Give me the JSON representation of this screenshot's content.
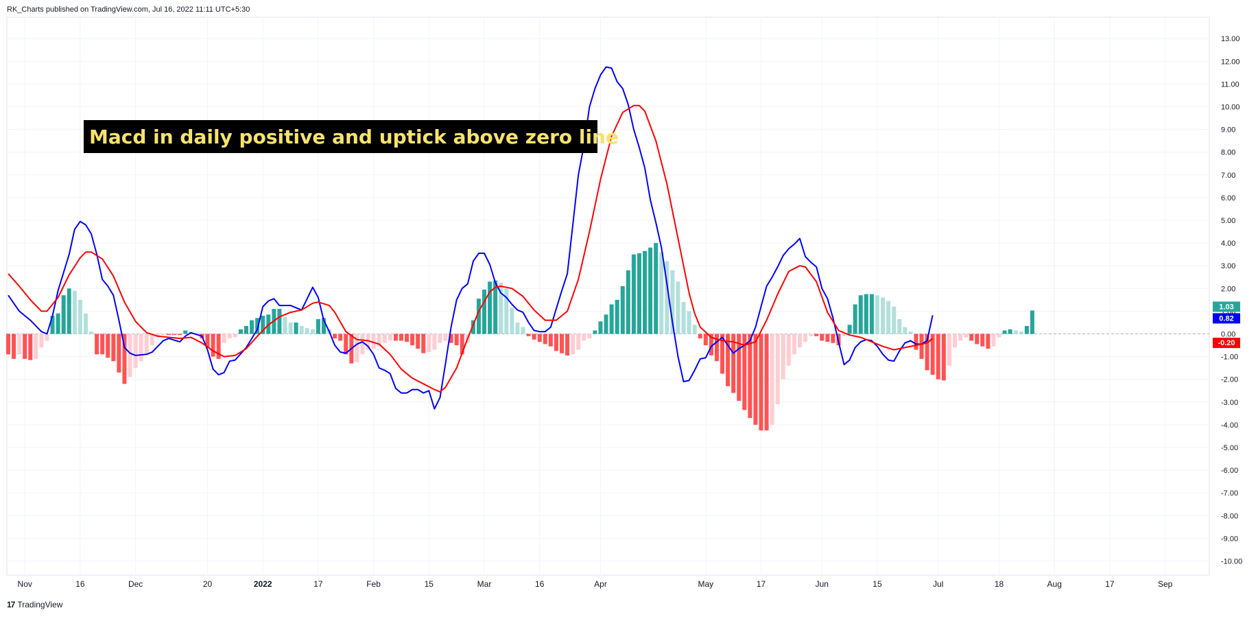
{
  "header": {
    "text": "RK_Charts published on TradingView.com, Jul 16, 2022 11:11 UTC+5:30"
  },
  "footer": {
    "logo": "17",
    "brand": "TradingView"
  },
  "annotation": {
    "text": "Macd in daily positive and uptick above zero line"
  },
  "colors": {
    "macd_line": "#0000ff",
    "signal_line": "#ff0000",
    "hist_pos_rising": "#26a69a",
    "hist_pos_falling": "#b2dfdb",
    "hist_neg_falling": "#ff5252",
    "hist_neg_rising": "#ffcdd2",
    "grid": "#f0f3fa",
    "zero_line": "#b2b5be"
  },
  "chart_data": {
    "type": "line",
    "title": "",
    "xlabel": "",
    "ylabel": "",
    "ylim": [
      -10.5,
      13.5
    ],
    "grid": true,
    "y_ticks": [
      "13.00",
      "12.00",
      "11.00",
      "10.00",
      "9.00",
      "8.00",
      "7.00",
      "6.00",
      "5.00",
      "4.00",
      "3.00",
      "2.00",
      "1.00",
      "0.00",
      "-1.00",
      "-2.00",
      "-3.00",
      "-4.00",
      "-5.00",
      "-6.00",
      "-7.00",
      "-8.00",
      "-9.00",
      "-10.00"
    ],
    "x_ticks": [
      {
        "label": "Nov",
        "bar": 3
      },
      {
        "label": "16",
        "bar": 13
      },
      {
        "label": "Dec",
        "bar": 23
      },
      {
        "label": "20",
        "bar": 36
      },
      {
        "label": "2022",
        "bar": 46
      },
      {
        "label": "17",
        "bar": 56
      },
      {
        "label": "Feb",
        "bar": 66
      },
      {
        "label": "15",
        "bar": 76
      },
      {
        "label": "Mar",
        "bar": 86
      },
      {
        "label": "16",
        "bar": 96
      },
      {
        "label": "Apr",
        "bar": 107
      },
      {
        "label": "May",
        "bar": 126
      },
      {
        "label": "17",
        "bar": 136
      },
      {
        "label": "Jun",
        "bar": 147
      },
      {
        "label": "15",
        "bar": 157
      },
      {
        "label": "Jul",
        "bar": 168
      },
      {
        "label": "18",
        "bar": 179
      },
      {
        "label": "Aug",
        "bar": 189
      },
      {
        "label": "17",
        "bar": 199
      },
      {
        "label": "Sep",
        "bar": 209
      }
    ],
    "histogram": [
      -0.9,
      -1.1,
      -0.9,
      -1.1,
      -1.15,
      -1.1,
      -0.6,
      -0.3,
      0.8,
      0.9,
      1.7,
      2.0,
      1.9,
      1.5,
      0.9,
      0.1,
      -0.9,
      -0.9,
      -1.05,
      -1.2,
      -1.7,
      -2.2,
      -1.9,
      -1.5,
      -1.2,
      -0.9,
      -0.5,
      -0.15,
      -0.05,
      -0.05,
      -0.05,
      -0.05,
      0.15,
      0.1,
      0.05,
      -0.2,
      -0.6,
      -1.0,
      -1.1,
      -0.4,
      -0.2,
      -0.15,
      0.2,
      0.35,
      0.6,
      0.7,
      0.8,
      0.85,
      1.1,
      1.1,
      0.75,
      0.5,
      0.5,
      0.35,
      0.25,
      0.2,
      0.65,
      0.7,
      0.2,
      -0.2,
      -0.3,
      -0.9,
      -1.3,
      -1.25,
      -0.9,
      -0.7,
      -0.65,
      -0.55,
      -0.4,
      -0.3,
      -0.3,
      -0.3,
      -0.35,
      -0.5,
      -0.65,
      -0.85,
      -0.8,
      -0.7,
      -0.4,
      -0.3,
      -0.4,
      -0.5,
      -0.9,
      -0.4,
      0.6,
      1.55,
      1.95,
      2.3,
      2.35,
      2.25,
      2.0,
      1.15,
      0.5,
      0.3,
      -0.1,
      -0.25,
      -0.35,
      -0.45,
      -0.55,
      -0.75,
      -0.85,
      -0.95,
      -0.9,
      -0.7,
      -0.3,
      -0.2,
      0.15,
      0.55,
      0.85,
      1.3,
      1.5,
      2.1,
      2.8,
      3.5,
      3.55,
      3.65,
      3.8,
      4.0,
      3.6,
      3.2,
      2.8,
      2.3,
      1.4,
      1.0,
      0.4,
      -0.2,
      -0.5,
      -0.95,
      -1.2,
      -1.75,
      -2.3,
      -2.6,
      -2.95,
      -3.35,
      -3.7,
      -4.0,
      -4.25,
      -4.25,
      -4.0,
      -3.1,
      -2.0,
      -1.4,
      -0.9,
      -0.6,
      -0.35,
      -0.1,
      -0.1,
      -0.3,
      -0.35,
      -0.4,
      -0.5,
      -0.1,
      0.4,
      1.3,
      1.7,
      1.75,
      1.75,
      1.7,
      1.6,
      1.45,
      1.2,
      0.65,
      0.3,
      0.1,
      -0.7,
      -1.1,
      -1.6,
      -1.8,
      -2.0,
      -2.05,
      -1.4,
      -0.6,
      -0.3,
      -0.15,
      -0.3,
      -0.45,
      -0.55,
      -0.65,
      -0.55,
      -0.15,
      0.15,
      0.2,
      0.15,
      0.1,
      0.35,
      1.03
    ],
    "series": [
      {
        "name": "",
        "color": "#0000ff",
        "points": [
          [
            0,
            1.7
          ],
          [
            2,
            1.0
          ],
          [
            4,
            0.6
          ],
          [
            6,
            0.1
          ],
          [
            7,
            0.0
          ],
          [
            8,
            0.8
          ],
          [
            9,
            1.9
          ],
          [
            11,
            3.5
          ],
          [
            12,
            4.6
          ],
          [
            13,
            4.95
          ],
          [
            14,
            4.8
          ],
          [
            15,
            4.4
          ],
          [
            16,
            3.5
          ],
          [
            17,
            2.4
          ],
          [
            18,
            2.1
          ],
          [
            19,
            1.7
          ],
          [
            20,
            0.6
          ],
          [
            21,
            -0.6
          ],
          [
            22,
            -0.85
          ],
          [
            23,
            -0.95
          ],
          [
            25,
            -0.9
          ],
          [
            26,
            -0.8
          ],
          [
            28,
            -0.3
          ],
          [
            29,
            -0.2
          ],
          [
            31,
            -0.35
          ],
          [
            32,
            -0.1
          ],
          [
            33,
            0.05
          ],
          [
            35,
            -0.1
          ],
          [
            36,
            -0.7
          ],
          [
            37,
            -1.55
          ],
          [
            38,
            -1.8
          ],
          [
            39,
            -1.7
          ],
          [
            40,
            -1.2
          ],
          [
            41,
            -1.15
          ],
          [
            43,
            -0.6
          ],
          [
            45,
            0.2
          ],
          [
            46,
            1.2
          ],
          [
            47,
            1.45
          ],
          [
            48,
            1.55
          ],
          [
            49,
            1.25
          ],
          [
            51,
            1.25
          ],
          [
            52,
            1.15
          ],
          [
            53,
            1.05
          ],
          [
            54,
            1.55
          ],
          [
            55,
            2.05
          ],
          [
            56,
            1.6
          ],
          [
            57,
            0.6
          ],
          [
            58,
            0.1
          ],
          [
            59,
            -0.5
          ],
          [
            60,
            -0.8
          ],
          [
            61,
            -0.85
          ],
          [
            62,
            -0.65
          ],
          [
            63,
            -0.45
          ],
          [
            64,
            -0.35
          ],
          [
            65,
            -0.55
          ],
          [
            66,
            -0.9
          ],
          [
            67,
            -1.5
          ],
          [
            68,
            -1.6
          ],
          [
            69,
            -1.75
          ],
          [
            70,
            -2.4
          ],
          [
            71,
            -2.6
          ],
          [
            72,
            -2.6
          ],
          [
            73,
            -2.45
          ],
          [
            74,
            -2.45
          ],
          [
            75,
            -2.6
          ],
          [
            76,
            -2.5
          ],
          [
            77,
            -3.3
          ],
          [
            78,
            -2.8
          ],
          [
            79,
            -1.3
          ],
          [
            80,
            0.3
          ],
          [
            81,
            1.5
          ],
          [
            82,
            2.0
          ],
          [
            83,
            2.2
          ],
          [
            84,
            3.2
          ],
          [
            85,
            3.55
          ],
          [
            86,
            3.55
          ],
          [
            87,
            3.05
          ],
          [
            88,
            2.25
          ],
          [
            89,
            1.8
          ],
          [
            90,
            1.6
          ],
          [
            91,
            1.3
          ],
          [
            92,
            1.05
          ],
          [
            93,
            0.95
          ],
          [
            94,
            0.5
          ],
          [
            95,
            0.15
          ],
          [
            96,
            0.1
          ],
          [
            97,
            0.1
          ],
          [
            98,
            0.3
          ],
          [
            99,
            1.1
          ],
          [
            100,
            1.9
          ],
          [
            101,
            2.65
          ],
          [
            102,
            4.8
          ],
          [
            103,
            7.0
          ],
          [
            104,
            8.3
          ],
          [
            105,
            10.0
          ],
          [
            106,
            10.8
          ],
          [
            107,
            11.4
          ],
          [
            108,
            11.75
          ],
          [
            109,
            11.7
          ],
          [
            110,
            11.1
          ],
          [
            111,
            10.8
          ],
          [
            112,
            10.1
          ],
          [
            113,
            9.0
          ],
          [
            114,
            8.2
          ],
          [
            115,
            7.3
          ],
          [
            116,
            5.9
          ],
          [
            117,
            4.9
          ],
          [
            118,
            3.8
          ],
          [
            119,
            2.2
          ],
          [
            120,
            0.5
          ],
          [
            121,
            -1.0
          ],
          [
            122,
            -2.1
          ],
          [
            123,
            -2.05
          ],
          [
            124,
            -1.6
          ],
          [
            125,
            -1.1
          ],
          [
            126,
            -1.05
          ],
          [
            127,
            -0.55
          ],
          [
            128,
            -0.35
          ],
          [
            129,
            -0.15
          ],
          [
            130,
            -0.5
          ],
          [
            131,
            -0.85
          ],
          [
            132,
            -0.65
          ],
          [
            133,
            -0.5
          ],
          [
            134,
            -0.3
          ],
          [
            135,
            0.3
          ],
          [
            136,
            1.2
          ],
          [
            137,
            2.1
          ],
          [
            138,
            2.5
          ],
          [
            139,
            2.95
          ],
          [
            140,
            3.45
          ],
          [
            141,
            3.75
          ],
          [
            142,
            3.95
          ],
          [
            143,
            4.2
          ],
          [
            144,
            3.4
          ],
          [
            145,
            3.15
          ],
          [
            146,
            2.95
          ],
          [
            147,
            2.0
          ],
          [
            148,
            1.55
          ],
          [
            149,
            0.7
          ],
          [
            150,
            -0.35
          ],
          [
            151,
            -1.35
          ],
          [
            152,
            -1.15
          ],
          [
            153,
            -0.6
          ],
          [
            154,
            -0.35
          ],
          [
            155,
            -0.25
          ],
          [
            156,
            -0.3
          ],
          [
            157,
            -0.55
          ],
          [
            158,
            -0.9
          ],
          [
            159,
            -1.15
          ],
          [
            160,
            -1.2
          ],
          [
            161,
            -0.75
          ],
          [
            162,
            -0.4
          ],
          [
            163,
            -0.3
          ],
          [
            164,
            -0.45
          ],
          [
            165,
            -0.45
          ],
          [
            166,
            -0.3
          ],
          [
            167,
            0.82
          ]
        ]
      },
      {
        "name": "",
        "color": "#ff0000",
        "points": [
          [
            0,
            2.65
          ],
          [
            2,
            2.1
          ],
          [
            4,
            1.5
          ],
          [
            6,
            1.0
          ],
          [
            7,
            1.0
          ],
          [
            9,
            1.6
          ],
          [
            11,
            2.6
          ],
          [
            13,
            3.35
          ],
          [
            14,
            3.6
          ],
          [
            15,
            3.6
          ],
          [
            17,
            3.3
          ],
          [
            19,
            2.55
          ],
          [
            21,
            1.4
          ],
          [
            23,
            0.55
          ],
          [
            25,
            0.05
          ],
          [
            27,
            -0.1
          ],
          [
            29,
            -0.15
          ],
          [
            31,
            -0.2
          ],
          [
            33,
            -0.15
          ],
          [
            35,
            -0.4
          ],
          [
            37,
            -0.75
          ],
          [
            39,
            -1.0
          ],
          [
            41,
            -0.95
          ],
          [
            43,
            -0.65
          ],
          [
            45,
            -0.1
          ],
          [
            47,
            0.4
          ],
          [
            49,
            0.75
          ],
          [
            51,
            0.95
          ],
          [
            53,
            1.05
          ],
          [
            55,
            1.35
          ],
          [
            56,
            1.4
          ],
          [
            58,
            1.25
          ],
          [
            59,
            0.95
          ],
          [
            61,
            0.1
          ],
          [
            63,
            -0.25
          ],
          [
            65,
            -0.3
          ],
          [
            67,
            -0.45
          ],
          [
            69,
            -0.9
          ],
          [
            71,
            -1.55
          ],
          [
            73,
            -1.95
          ],
          [
            75,
            -2.2
          ],
          [
            77,
            -2.45
          ],
          [
            78,
            -2.55
          ],
          [
            79,
            -2.35
          ],
          [
            81,
            -1.5
          ],
          [
            83,
            -0.2
          ],
          [
            85,
            1.0
          ],
          [
            87,
            1.85
          ],
          [
            88,
            2.05
          ],
          [
            89,
            2.1
          ],
          [
            91,
            2.0
          ],
          [
            93,
            1.65
          ],
          [
            95,
            1.05
          ],
          [
            97,
            0.6
          ],
          [
            99,
            0.6
          ],
          [
            101,
            1.0
          ],
          [
            103,
            2.4
          ],
          [
            105,
            4.5
          ],
          [
            107,
            6.8
          ],
          [
            109,
            8.7
          ],
          [
            111,
            9.75
          ],
          [
            113,
            10.05
          ],
          [
            114,
            10.05
          ],
          [
            115,
            9.8
          ],
          [
            117,
            8.5
          ],
          [
            119,
            6.6
          ],
          [
            121,
            4.2
          ],
          [
            123,
            1.8
          ],
          [
            124,
            0.9
          ],
          [
            125,
            0.3
          ],
          [
            127,
            -0.15
          ],
          [
            129,
            -0.3
          ],
          [
            131,
            -0.35
          ],
          [
            133,
            -0.5
          ],
          [
            135,
            -0.35
          ],
          [
            137,
            0.6
          ],
          [
            139,
            1.75
          ],
          [
            141,
            2.75
          ],
          [
            143,
            3.0
          ],
          [
            144,
            2.95
          ],
          [
            146,
            2.3
          ],
          [
            148,
            0.95
          ],
          [
            150,
            0.15
          ],
          [
            152,
            -0.05
          ],
          [
            154,
            -0.15
          ],
          [
            156,
            -0.35
          ],
          [
            158,
            -0.55
          ],
          [
            160,
            -0.7
          ],
          [
            162,
            -0.6
          ],
          [
            164,
            -0.5
          ],
          [
            166,
            -0.4
          ],
          [
            167,
            -0.2
          ]
        ]
      }
    ],
    "last_values": {
      "histogram": "1.03",
      "macd": "0.82",
      "signal": "-0.20"
    }
  }
}
